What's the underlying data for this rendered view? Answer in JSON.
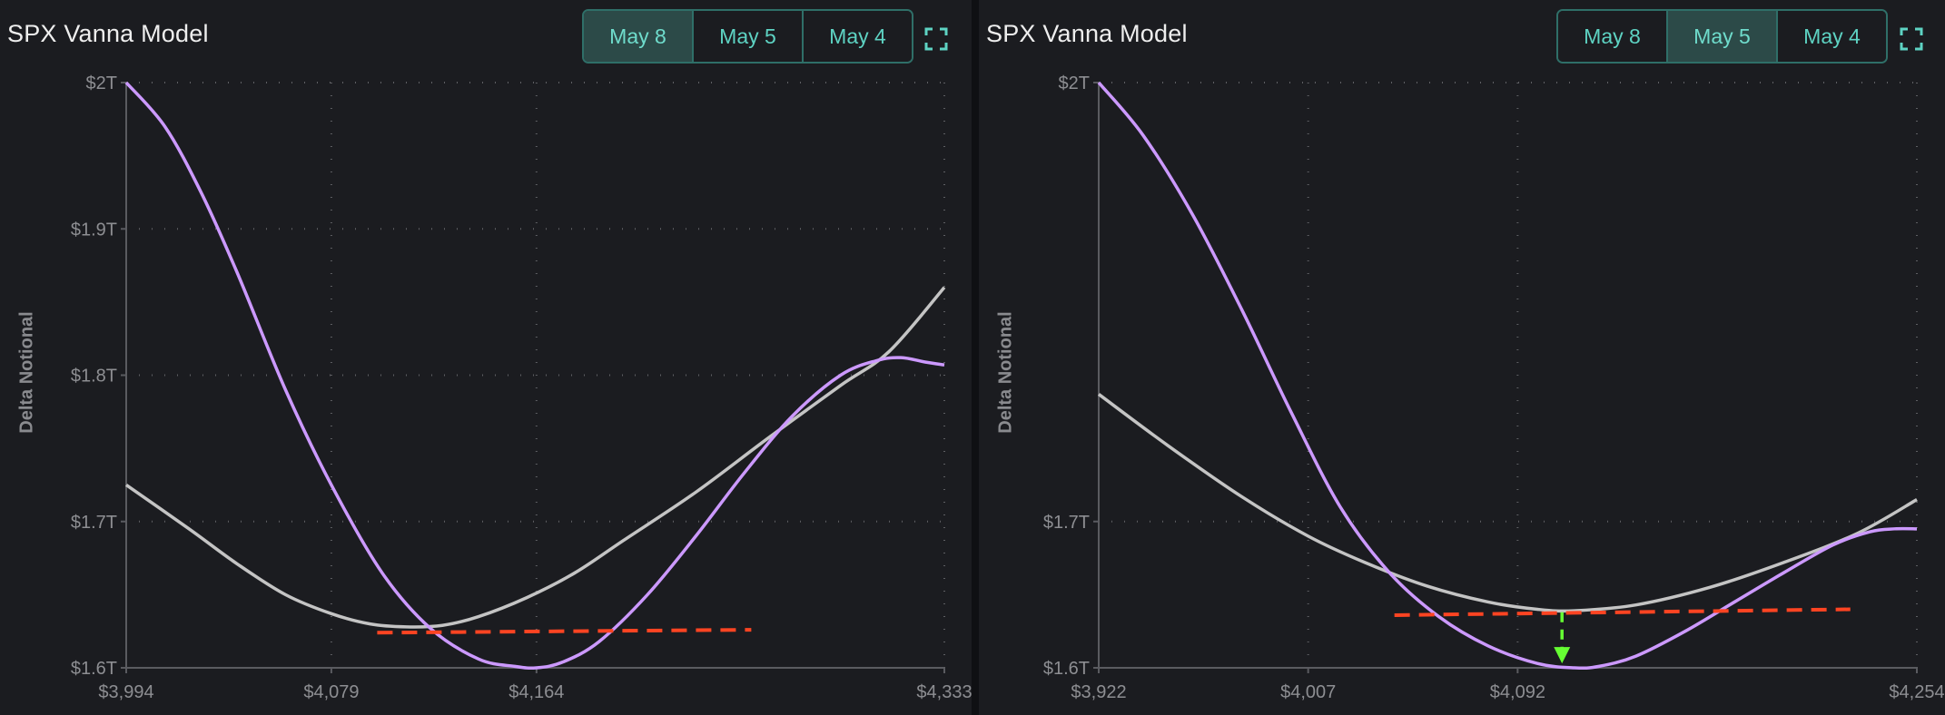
{
  "charts": [
    {
      "title": "SPX Vanna Model",
      "tabs": [
        {
          "label": "May 8",
          "active": true
        },
        {
          "label": "May 5",
          "active": false
        },
        {
          "label": "May 4",
          "active": false
        }
      ]
    },
    {
      "title": "SPX Vanna Model",
      "tabs": [
        {
          "label": "May 8",
          "active": false
        },
        {
          "label": "May 5",
          "active": true
        },
        {
          "label": "May 4",
          "active": false
        }
      ]
    }
  ],
  "colors": {
    "purple_series": "#cc99ff",
    "gray_series": "#c4c4c4",
    "red_dashed": "#ff4422",
    "green_arrow": "#66ff33",
    "accent": "#5ed3c3"
  },
  "chart_data": [
    {
      "type": "line",
      "title": "SPX Vanna Model",
      "xlabel": "",
      "ylabel": "Delta Notional",
      "xlim": [
        3994,
        4333
      ],
      "ylim": [
        1.6,
        2.0
      ],
      "x_ticks": [
        3994,
        4079,
        4164,
        4333
      ],
      "x_tick_labels": [
        "$3,994",
        "$4,079",
        "$4,164",
        "$4,333"
      ],
      "y_ticks": [
        1.6,
        1.7,
        1.8,
        1.9,
        2.0
      ],
      "y_tick_labels": [
        "$1.6T",
        "$1.7T",
        "$1.8T",
        "$1.9T",
        "$2T"
      ],
      "grid": true,
      "series": [
        {
          "color": "#cc99ff",
          "x": [
            3994,
            4010,
            4025,
            4040,
            4060,
            4079,
            4100,
            4120,
            4140,
            4155,
            4164,
            4175,
            4190,
            4210,
            4230,
            4250,
            4270,
            4290,
            4305,
            4315,
            4325,
            4333
          ],
          "y": [
            2.0,
            1.97,
            1.925,
            1.87,
            1.79,
            1.725,
            1.665,
            1.627,
            1.606,
            1.601,
            1.6,
            1.604,
            1.618,
            1.65,
            1.69,
            1.733,
            1.772,
            1.8,
            1.81,
            1.812,
            1.809,
            1.807
          ]
        },
        {
          "color": "#c4c4c4",
          "x": [
            3994,
            4020,
            4040,
            4060,
            4079,
            4095,
            4110,
            4125,
            4140,
            4160,
            4180,
            4200,
            4230,
            4260,
            4290,
            4310,
            4333
          ],
          "y": [
            1.725,
            1.695,
            1.671,
            1.65,
            1.637,
            1.63,
            1.628,
            1.629,
            1.635,
            1.648,
            1.665,
            1.687,
            1.72,
            1.757,
            1.793,
            1.816,
            1.86
          ]
        },
        {
          "color": "#ff4422",
          "style": "dashed",
          "x": [
            4098,
            4253
          ],
          "y": [
            1.624,
            1.626
          ]
        }
      ]
    },
    {
      "type": "line",
      "title": "SPX Vanna Model",
      "xlabel": "",
      "ylabel": "Delta Notional",
      "xlim": [
        3922,
        4254
      ],
      "ylim": [
        1.6,
        2.0
      ],
      "x_ticks": [
        3922,
        4007,
        4092,
        4254
      ],
      "x_tick_labels": [
        "$3,922",
        "$4,007",
        "$4,092",
        "$4,254"
      ],
      "y_ticks": [
        1.6,
        1.7,
        2.0
      ],
      "y_tick_labels": [
        "$1.6T",
        "$1.7T",
        "$2T"
      ],
      "grid": true,
      "series": [
        {
          "color": "#cc99ff",
          "x": [
            3922,
            3940,
            3960,
            3980,
            4000,
            4020,
            4040,
            4060,
            4080,
            4100,
            4115,
            4125,
            4140,
            4160,
            4180,
            4200,
            4220,
            4235,
            4245,
            4254
          ],
          "y": [
            2.0,
            1.964,
            1.91,
            1.845,
            1.775,
            1.71,
            1.665,
            1.635,
            1.615,
            1.603,
            1.6,
            1.601,
            1.608,
            1.625,
            1.645,
            1.665,
            1.684,
            1.693,
            1.695,
            1.695
          ]
        },
        {
          "color": "#c4c4c4",
          "x": [
            3922,
            3950,
            3980,
            4007,
            4030,
            4055,
            4080,
            4100,
            4115,
            4140,
            4170,
            4200,
            4230,
            4254
          ],
          "y": [
            1.787,
            1.752,
            1.717,
            1.69,
            1.672,
            1.656,
            1.645,
            1.64,
            1.639,
            1.643,
            1.655,
            1.672,
            1.692,
            1.715
          ]
        },
        {
          "color": "#ff4422",
          "style": "dashed",
          "x": [
            4042,
            4227
          ],
          "y": [
            1.636,
            1.64
          ]
        }
      ],
      "annotations": [
        {
          "type": "arrow",
          "color": "#66ff33",
          "style": "dashed",
          "x": 4110,
          "y_from": 1.638,
          "y_to": 1.603
        }
      ]
    }
  ]
}
